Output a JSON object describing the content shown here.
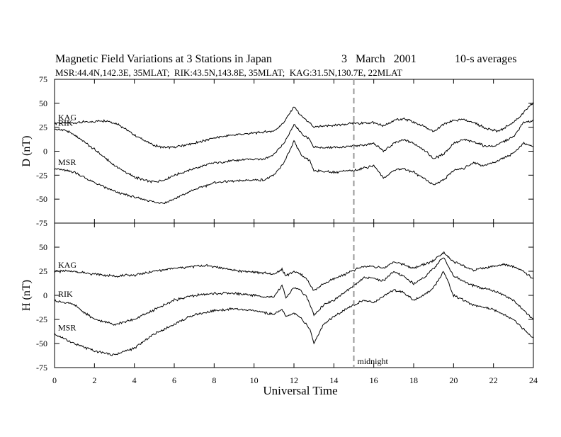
{
  "chart_data": {
    "type": "line",
    "title": "Magnetic Field Variations at 3 Stations in Japan",
    "date": "3   March   2001",
    "averaging": "10-s averages",
    "subtitle": "MSR:44.4N,142.3E, 35MLAT;  RIK:43.5N,143.8E, 35MLAT;  KAG:31.5N,130.7E, 22MLAT",
    "xlabel": "Universal Time",
    "xlim": [
      0,
      24
    ],
    "xticks": [
      0,
      2,
      4,
      6,
      8,
      10,
      12,
      14,
      16,
      18,
      20,
      22,
      24
    ],
    "marker": {
      "x": 15,
      "label": "midnight"
    },
    "panels": [
      {
        "ylabel": "D (nT)",
        "ylim": [
          -75,
          75
        ],
        "yticks": [
          75,
          50,
          25,
          0,
          -25,
          -50,
          -75
        ],
        "series": [
          {
            "name": "KAG",
            "x": [
              0,
              1,
              2,
              2.6,
              3.2,
              4,
              4.6,
              5,
              5.5,
              6,
              7,
              8,
              9,
              10,
              11,
              11.5,
              11.8,
              12,
              12.3,
              12.7,
              13,
              14,
              15,
              16,
              16.5,
              17,
              17.5,
              18,
              18.5,
              19,
              19.5,
              20,
              20.5,
              21,
              21.5,
              22,
              22.3,
              23,
              23.5,
              24
            ],
            "values": [
              29,
              30,
              31,
              32,
              28,
              17,
              10,
              6,
              4,
              4,
              8,
              14,
              17,
              19,
              21,
              30,
              40,
              47,
              38,
              31,
              25,
              27,
              29,
              30,
              26,
              32,
              34,
              30,
              26,
              20,
              28,
              32,
              33,
              30,
              25,
              22,
              21,
              30,
              40,
              51
            ]
          },
          {
            "name": "RIK",
            "x": [
              0,
              0.5,
              1,
              2,
              3,
              4,
              4.6,
              5,
              5.5,
              6,
              7,
              8,
              9,
              10,
              10.5,
              11,
              11.5,
              12,
              12.4,
              12.8,
              13,
              14,
              15,
              16,
              16.5,
              17,
              17.5,
              18,
              18.5,
              19,
              19.5,
              20,
              20.5,
              21,
              21.5,
              22,
              23,
              23.5,
              24
            ],
            "values": [
              23,
              22,
              17,
              2,
              -15,
              -27,
              -31,
              -32,
              -30,
              -25,
              -18,
              -12,
              -10,
              -8,
              -8,
              -3,
              8,
              28,
              18,
              12,
              4,
              4,
              5,
              8,
              0,
              8,
              12,
              8,
              2,
              -8,
              -3,
              8,
              12,
              10,
              6,
              5,
              15,
              30,
              32
            ]
          },
          {
            "name": "MSR",
            "x": [
              0,
              1,
              2,
              3,
              4,
              5,
              5.5,
              6,
              7,
              8,
              9,
              10,
              10.5,
              11,
              11.5,
              12,
              12.4,
              12.8,
              13,
              14,
              15,
              16,
              16.5,
              17,
              17.5,
              18,
              18.5,
              19,
              19.5,
              20,
              20.5,
              21,
              21.5,
              22,
              23,
              23.5,
              24
            ],
            "values": [
              -18,
              -22,
              -33,
              -42,
              -48,
              -53,
              -54,
              -50,
              -40,
              -33,
              -31,
              -30,
              -30,
              -25,
              -12,
              10,
              -5,
              -10,
              -20,
              -22,
              -20,
              -15,
              -28,
              -20,
              -18,
              -22,
              -28,
              -35,
              -30,
              -20,
              -18,
              -12,
              -15,
              -12,
              -2,
              8,
              5
            ]
          }
        ]
      },
      {
        "ylabel": "H (nT)",
        "ylim": [
          -75,
          75
        ],
        "yticks": [
          50,
          25,
          0,
          -25,
          -50,
          -75
        ],
        "series": [
          {
            "name": "KAG",
            "x": [
              0,
              1,
              2,
              3,
              4,
              5,
              6,
              7,
              7.5,
              8,
              9,
              10,
              11,
              11.4,
              11.6,
              12,
              12.3,
              12.6,
              13,
              13.5,
              14,
              15,
              15.5,
              16,
              16.5,
              17,
              17.5,
              18,
              18.5,
              19,
              19.5,
              20,
              21,
              22,
              22.5,
              23,
              23.5,
              24
            ],
            "values": [
              25,
              25,
              22,
              20,
              21,
              25,
              28,
              30,
              31,
              30,
              26,
              24,
              22,
              27,
              20,
              25,
              22,
              18,
              5,
              12,
              17,
              26,
              30,
              30,
              28,
              35,
              32,
              28,
              32,
              36,
              45,
              35,
              26,
              30,
              32,
              30,
              25,
              17
            ]
          },
          {
            "name": "RIK",
            "x": [
              0,
              1,
              1.5,
              2,
              3,
              4,
              5,
              6,
              7,
              8,
              9,
              10,
              11,
              11.4,
              11.6,
              12,
              12.3,
              12.6,
              13,
              13.5,
              14,
              15,
              15.5,
              16,
              16.5,
              17,
              17.5,
              18,
              18.5,
              19,
              19.5,
              20,
              21,
              22,
              23,
              23.5,
              24
            ],
            "values": [
              -5,
              -10,
              -18,
              -25,
              -30,
              -25,
              -15,
              -5,
              0,
              2,
              2,
              0,
              -2,
              10,
              -2,
              8,
              5,
              0,
              -20,
              -10,
              -5,
              10,
              18,
              18,
              15,
              25,
              20,
              12,
              18,
              28,
              40,
              20,
              10,
              5,
              -5,
              -15,
              -25
            ]
          },
          {
            "name": "MSR",
            "x": [
              0,
              1,
              2,
              2.5,
              3,
              3.5,
              4,
              5,
              6,
              7,
              8,
              9,
              10,
              11,
              11.4,
              11.6,
              12,
              12.4,
              12.8,
              13,
              13.5,
              14,
              15,
              15.5,
              16,
              16.5,
              17,
              17.5,
              18,
              18.5,
              19,
              19.5,
              20,
              21,
              22,
              23,
              24
            ],
            "values": [
              -40,
              -50,
              -58,
              -60,
              -62,
              -58,
              -55,
              -40,
              -30,
              -20,
              -16,
              -14,
              -16,
              -20,
              -15,
              -22,
              -18,
              -25,
              -35,
              -50,
              -30,
              -22,
              -10,
              -5,
              -8,
              0,
              5,
              3,
              -5,
              0,
              8,
              25,
              0,
              -10,
              -15,
              -25,
              -45
            ]
          }
        ]
      }
    ]
  }
}
